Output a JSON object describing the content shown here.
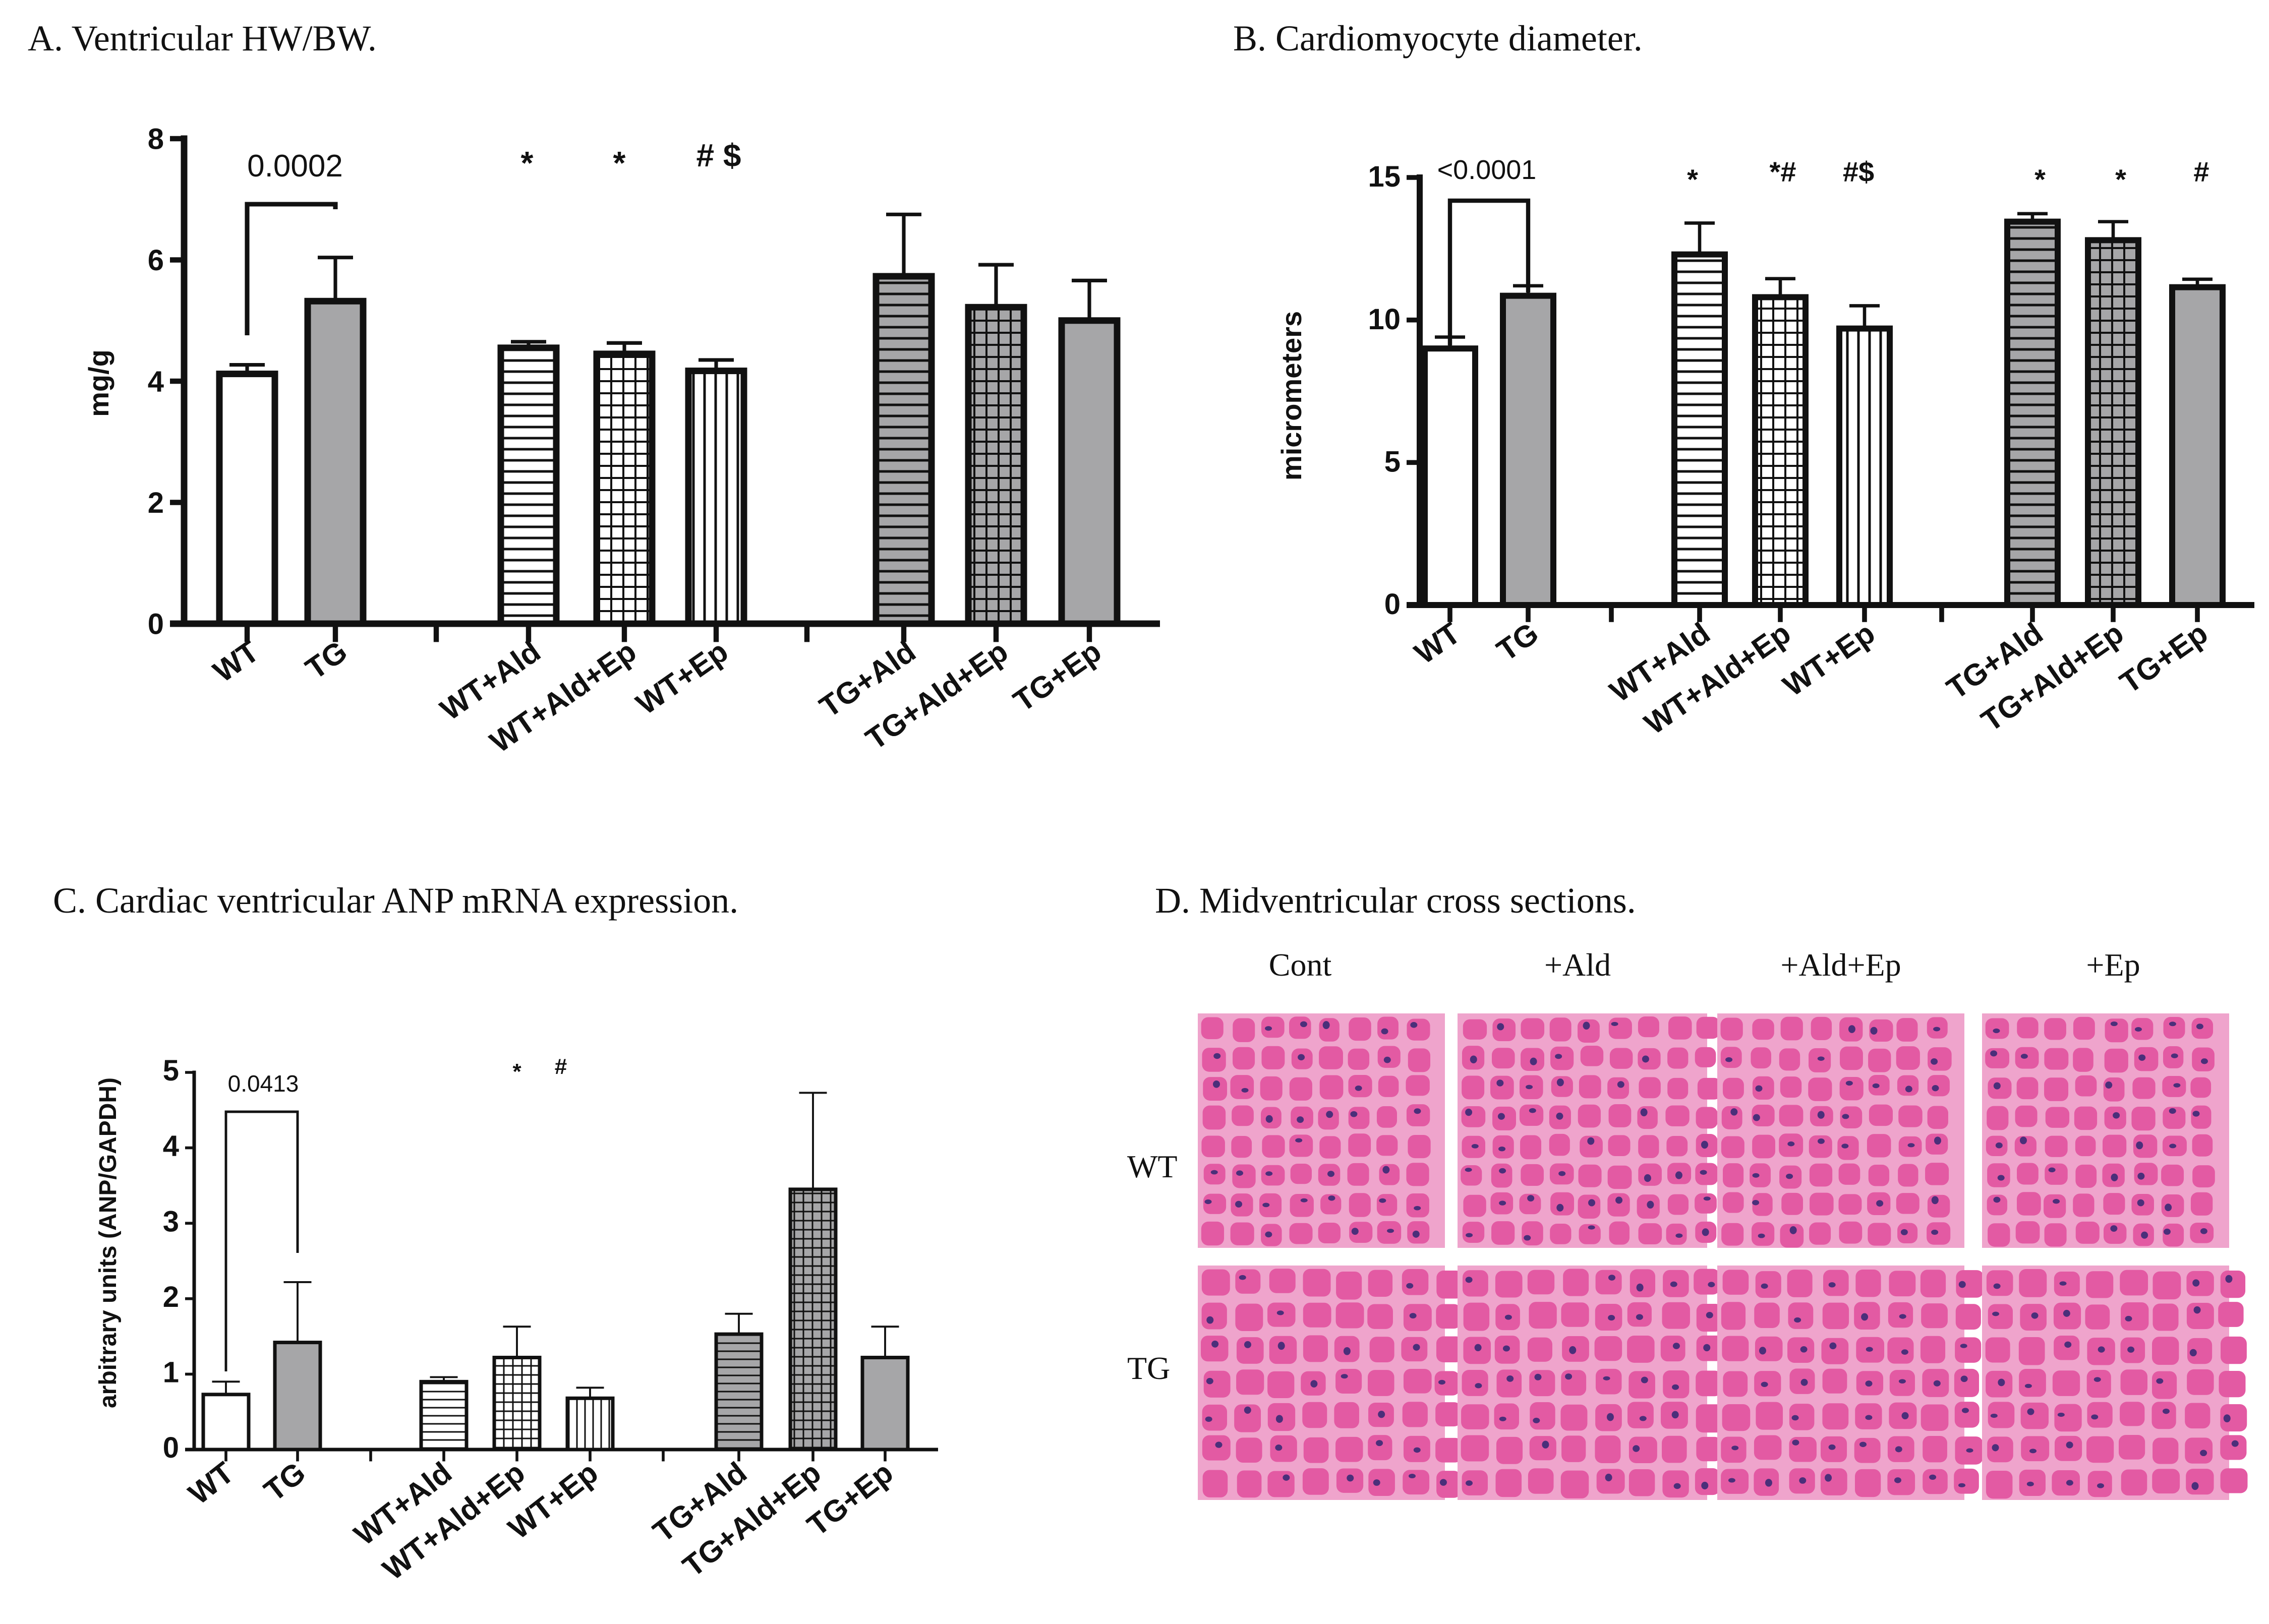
{
  "chart_data": [
    {
      "id": "A",
      "type": "bar",
      "title": "A. Ventricular HW/BW.",
      "ylabel": "mg/g",
      "ylim": [
        0,
        8
      ],
      "yticks": [
        0,
        2,
        4,
        6,
        8
      ],
      "categories": [
        "WT",
        "TG",
        "WT+Ald",
        "WT+Ald+Ep",
        "WT+Ep",
        "TG+Ald",
        "TG+Ald+Ep",
        "TG+Ep"
      ],
      "values": [
        4.12,
        5.32,
        4.55,
        4.45,
        4.17,
        5.73,
        5.22,
        5.0
      ],
      "errors": [
        0.15,
        0.72,
        0.1,
        0.18,
        0.18,
        1.02,
        0.7,
        0.66
      ],
      "bracket_label": "0.0002",
      "annotations": [
        "*",
        "*",
        "# $"
      ]
    },
    {
      "id": "B",
      "type": "bar",
      "title": "B. Cardiomyocyte diameter.",
      "ylabel": "micrometers",
      "ylim": [
        0,
        15
      ],
      "yticks": [
        0,
        5,
        10,
        15
      ],
      "categories": [
        "WT",
        "TG",
        "WT+Ald",
        "WT+Ald+Ep",
        "WT+Ep",
        "TG+Ald",
        "TG+Ald+Ep",
        "TG+Ep"
      ],
      "values": [
        9.0,
        10.85,
        12.3,
        10.8,
        9.7,
        13.45,
        12.8,
        11.15
      ],
      "errors": [
        0.4,
        0.35,
        1.1,
        0.65,
        0.8,
        0.28,
        0.65,
        0.28
      ],
      "bracket_label": "<0.0001",
      "annotations": [
        "*",
        "*#",
        "#$",
        "*",
        "*",
        "#"
      ]
    },
    {
      "id": "C",
      "type": "bar",
      "title": "C. Cardiac ventricular ANP mRNA expression.",
      "ylabel": "arbitrary units (ANP/GAPDH)",
      "ylim": [
        0,
        5
      ],
      "yticks": [
        0,
        1,
        2,
        3,
        4,
        5
      ],
      "categories": [
        "WT",
        "TG",
        "WT+Ald",
        "WT+Ald+Ep",
        "WT+Ep",
        "TG+Ald",
        "TG+Ald+Ep",
        "TG+Ep"
      ],
      "values": [
        0.73,
        1.42,
        0.9,
        1.22,
        0.68,
        1.53,
        3.45,
        1.22
      ],
      "errors": [
        0.17,
        0.8,
        0.06,
        0.41,
        0.14,
        0.27,
        1.28,
        0.41
      ],
      "bracket_label": "0.0413",
      "annotations": [
        "*",
        "#"
      ]
    }
  ],
  "panel_d": {
    "title": "D. Midventricular cross sections.",
    "columns": [
      "Cont",
      "+Ald",
      "+Ald+Ep",
      "+Ep"
    ],
    "rows": [
      "WT",
      "TG"
    ]
  },
  "colors": {
    "white_bar": "#ffffff",
    "gray_bar": "#a6a6a8",
    "axis": "#111111",
    "tissue": "#e35aa3",
    "tissue_light": "#efa4cc",
    "nucleus": "#4b2f7a"
  }
}
